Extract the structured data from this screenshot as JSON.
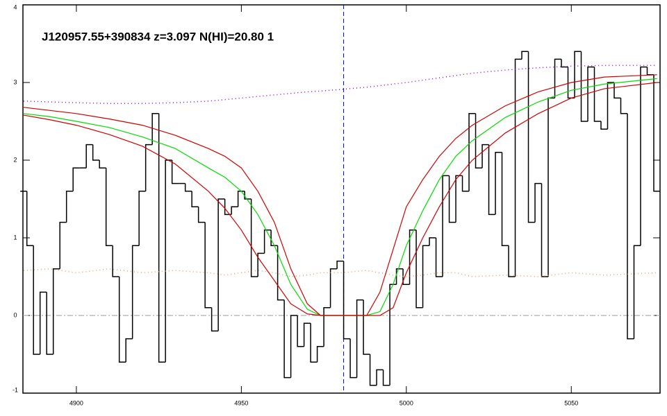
{
  "chart_data": {
    "type": "line",
    "annotation": "J120957.55+390834 z=3.097 N(HI)=20.80 1",
    "xlim": [
      4883.8,
      5076.9
    ],
    "ylim": [
      -1,
      4
    ],
    "xticks": [
      4900,
      4950,
      5000,
      5050
    ],
    "yticks": [
      -1,
      0,
      1,
      2,
      3,
      4
    ],
    "hline": 0,
    "vline": 4981,
    "series": [
      {
        "color": "#000000",
        "style": "step",
        "x": [
          4884,
          4886,
          4888,
          4890,
          4892,
          4894,
          4896,
          4898,
          4900,
          4902,
          4904,
          4906,
          4908,
          4910,
          4912,
          4914,
          4916,
          4918,
          4920,
          4922,
          4924,
          4926,
          4928,
          4930,
          4932,
          4934,
          4936,
          4938,
          4940,
          4942,
          4944,
          4946,
          4948,
          4950,
          4952,
          4954,
          4956,
          4958,
          4960,
          4962,
          4964,
          4966,
          4968,
          4970,
          4972,
          4974,
          4976,
          4978,
          4980,
          4982,
          4984,
          4986,
          4988,
          4990,
          4992,
          4994,
          4996,
          4998,
          5000,
          5002,
          5004,
          5006,
          5008,
          5010,
          5012,
          5014,
          5016,
          5018,
          5020,
          5022,
          5024,
          5026,
          5028,
          5030,
          5032,
          5034,
          5036,
          5038,
          5040,
          5042,
          5044,
          5046,
          5048,
          5050,
          5052,
          5054,
          5056,
          5058,
          5060,
          5062,
          5064,
          5066,
          5068,
          5070,
          5072,
          5074,
          5076
        ],
        "values": [
          1.6,
          0.9,
          -0.5,
          0.3,
          -0.5,
          0.6,
          1.2,
          1.6,
          1.9,
          1.9,
          2.2,
          2.0,
          1.9,
          0.9,
          0.5,
          -0.6,
          -0.3,
          0.9,
          1.6,
          2.2,
          2.6,
          -0.6,
          2.0,
          1.7,
          1.7,
          1.6,
          1.4,
          1.2,
          0.1,
          -0.2,
          1.5,
          1.3,
          1.4,
          1.6,
          1.5,
          0.5,
          0.8,
          1.1,
          0.9,
          0.2,
          -0.8,
          0.0,
          -0.4,
          -0.1,
          -0.6,
          -0.4,
          0.1,
          0.6,
          0.7,
          -0.3,
          -0.8,
          0.2,
          -0.5,
          -0.9,
          -0.7,
          -0.9,
          0.4,
          0.6,
          0.4,
          1.1,
          0.1,
          0.9,
          1.0,
          0.5,
          1.8,
          1.2,
          1.8,
          1.6,
          2.6,
          1.9,
          2.2,
          1.3,
          2.1,
          0.9,
          0.5,
          3.3,
          3.4,
          1.2,
          1.7,
          0.5,
          2.8,
          3.3,
          3.2,
          2.8,
          3.4,
          2.5,
          3.2,
          2.5,
          2.4,
          3.0,
          2.8,
          2.6,
          -0.3,
          0.9,
          3.2,
          3.1,
          1.6
        ]
      },
      {
        "color": "#e8a060",
        "style": "dotted",
        "x": [
          4884,
          4892,
          4900,
          4910,
          4920,
          4930,
          4940,
          4945,
          4950,
          4955,
          4960,
          4965,
          4970,
          4974,
          4980,
          4988,
          4992,
          4996,
          5000,
          5005,
          5010,
          5015,
          5020,
          5030,
          5040,
          5050,
          5060,
          5076
        ],
        "values": [
          0.58,
          0.6,
          0.55,
          0.6,
          0.55,
          0.58,
          0.55,
          0.52,
          0.55,
          0.58,
          0.55,
          0.5,
          0.52,
          0.55,
          0.55,
          0.58,
          0.55,
          0.52,
          0.5,
          0.52,
          0.55,
          0.55,
          0.5,
          0.52,
          0.5,
          0.55,
          0.52,
          0.55
        ]
      },
      {
        "color": "#8000ff",
        "style": "dotted",
        "x": [
          4884,
          4892,
          4900,
          4910,
          4920,
          4930,
          4940,
          4945,
          4950,
          4955,
          4960,
          4965,
          4970,
          4974,
          4980,
          4988,
          4992,
          4996,
          5000,
          5005,
          5010,
          5015,
          5020,
          5030,
          5040,
          5050,
          5060,
          5076
        ],
        "values": [
          2.76,
          2.75,
          2.74,
          2.73,
          2.73,
          2.74,
          2.76,
          2.78,
          2.8,
          2.82,
          2.84,
          2.86,
          2.88,
          2.89,
          2.91,
          2.94,
          2.96,
          2.98,
          3.0,
          3.03,
          3.06,
          3.09,
          3.12,
          3.16,
          3.19,
          3.21,
          3.22,
          3.22
        ]
      },
      {
        "color": "#00dd00",
        "style": "line",
        "x": [
          4884,
          4892,
          4900,
          4910,
          4920,
          4930,
          4940,
          4945,
          4950,
          4955,
          4960,
          4965,
          4970,
          4974,
          4980,
          4988,
          4992,
          4996,
          5000,
          5005,
          5010,
          5015,
          5020,
          5030,
          5040,
          5050,
          5060,
          5076
        ],
        "values": [
          2.6,
          2.56,
          2.5,
          2.42,
          2.3,
          2.15,
          1.9,
          1.78,
          1.6,
          1.3,
          0.9,
          0.4,
          0.08,
          0,
          0,
          0,
          0.05,
          0.4,
          0.9,
          1.35,
          1.75,
          2.05,
          2.25,
          2.55,
          2.75,
          2.9,
          2.98,
          3.05
        ]
      },
      {
        "color": "#d00000",
        "style": "line",
        "x": [
          4884,
          4892,
          4900,
          4910,
          4920,
          4930,
          4940,
          4945,
          4950,
          4955,
          4960,
          4965,
          4970,
          4974,
          4980,
          4988,
          4992,
          4996,
          5000,
          5005,
          5010,
          5015,
          5020,
          5030,
          5040,
          5050,
          5060,
          5076
        ],
        "values": [
          2.68,
          2.64,
          2.6,
          2.53,
          2.45,
          2.32,
          2.15,
          2.05,
          1.9,
          1.6,
          1.2,
          0.6,
          0.15,
          0,
          0,
          0,
          0.3,
          0.85,
          1.4,
          1.75,
          2.05,
          2.28,
          2.45,
          2.7,
          2.88,
          3.0,
          3.07,
          3.1
        ]
      },
      {
        "color": "#d00000",
        "style": "line",
        "x": [
          4884,
          4892,
          4900,
          4910,
          4920,
          4930,
          4940,
          4945,
          4950,
          4955,
          4960,
          4965,
          4970,
          4974,
          4980,
          4988,
          4992,
          4996,
          5000,
          5005,
          5010,
          5015,
          5020,
          5030,
          5040,
          5050,
          5060,
          5076
        ],
        "values": [
          2.58,
          2.52,
          2.45,
          2.33,
          2.18,
          1.95,
          1.6,
          1.38,
          1.1,
          0.75,
          0.45,
          0.15,
          0.02,
          0,
          0,
          0,
          0,
          0.1,
          0.55,
          1.0,
          1.4,
          1.75,
          2.0,
          2.35,
          2.6,
          2.8,
          2.92,
          3.0
        ]
      }
    ]
  }
}
